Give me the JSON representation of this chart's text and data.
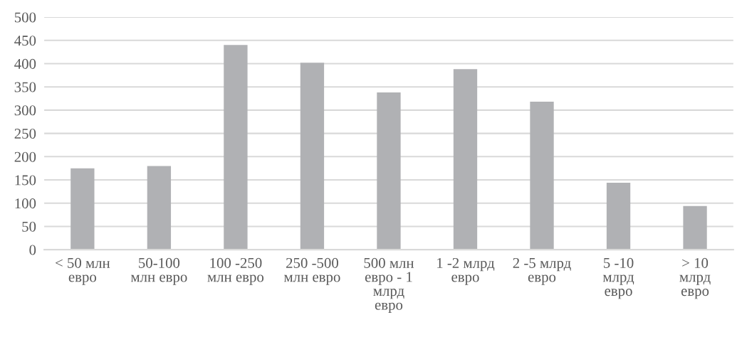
{
  "chart_data": {
    "type": "bar",
    "categories": [
      "< 50 млн\nевро",
      "50-100\nмлн евро",
      "100 -250\nмлн евро",
      "250 -500\nмлн евро",
      "500 млн\nевро - 1\nмлрд\nевро",
      "1 -2 млрд\nевро",
      "2 -5 млрд\nевро",
      "5 -10\nмлрд\nевро",
      "> 10\nмлрд\nевро"
    ],
    "values": [
      175,
      180,
      440,
      402,
      338,
      388,
      318,
      144,
      94
    ],
    "color": "#b0b1b4",
    "ylim": [
      0,
      500
    ],
    "yticks": [
      0,
      50,
      100,
      150,
      200,
      250,
      300,
      350,
      400,
      450,
      500
    ],
    "grid": "y",
    "legend": false
  }
}
